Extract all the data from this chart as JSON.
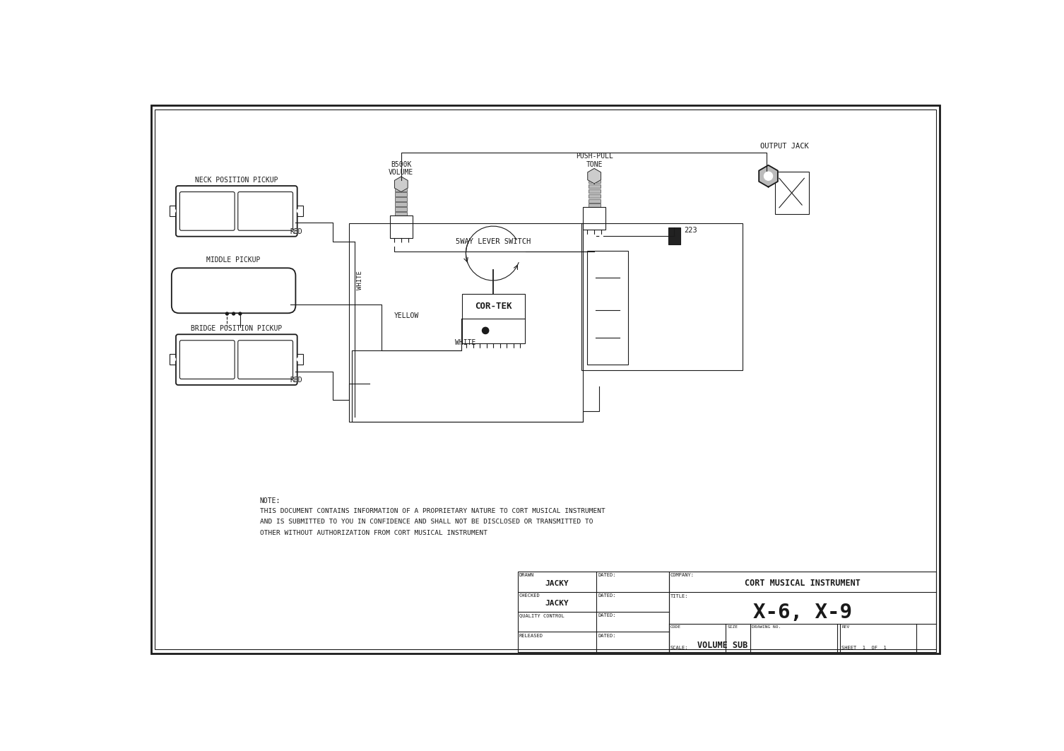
{
  "bg_color": "#ffffff",
  "line_color": "#1a1a1a",
  "title_company": "CORT MUSICAL INSTRUMENT",
  "title_model": "X-6, X-9",
  "drawn_by": "JACKY",
  "checked_by": "JACKY",
  "scale": "VOLUME SUB",
  "sheet": "SHEET  1  OF  1",
  "note_line0": "NOTE:",
  "note_line1": "THIS DOCUMENT CONTAINS INFORMATION OF A PROPRIETARY NATURE TO CORT MUSICAL INSTRUMENT",
  "note_line2": "AND IS SUBMITTED TO YOU IN CONFIDENCE AND SHALL NOT BE DISCLOSED OR TRANSMITTED TO",
  "note_line3": "OTHER WITHOUT AUTHORIZATION FROM CORT MUSICAL INSTRUMENT",
  "label_neck": "NECK POSITION PICKUP",
  "label_middle": "MIDDLE PICKUP",
  "label_bridge": "BRIDGE POSITION PICKUP",
  "label_volume": "B500K\nVOLUME",
  "label_tone": "PUSH-PULL\nTONE",
  "label_output": "OUTPUT JACK",
  "label_switch": "5WAY LEVER SWITCH",
  "label_cortek": "COR-TEK",
  "label_red1": "RED",
  "label_white1": "WHITE",
  "label_yellow": "YELLOW",
  "label_white2": "WHITE",
  "label_red2": "RED",
  "label_cap": "223",
  "label_company_small": "COMPANY:",
  "label_title_small": "TITLE:",
  "label_drawn": "DRAWN",
  "label_checked": "CHECKED",
  "label_qc": "QUALITY CONTROL",
  "label_released": "RELEASED",
  "label_dated": "DATED:",
  "label_code": "CODE",
  "label_size": "SIZE",
  "label_drawing_no": "DRAWING NO.",
  "label_rev": "REV",
  "label_scale_prefix": "SCALE:"
}
